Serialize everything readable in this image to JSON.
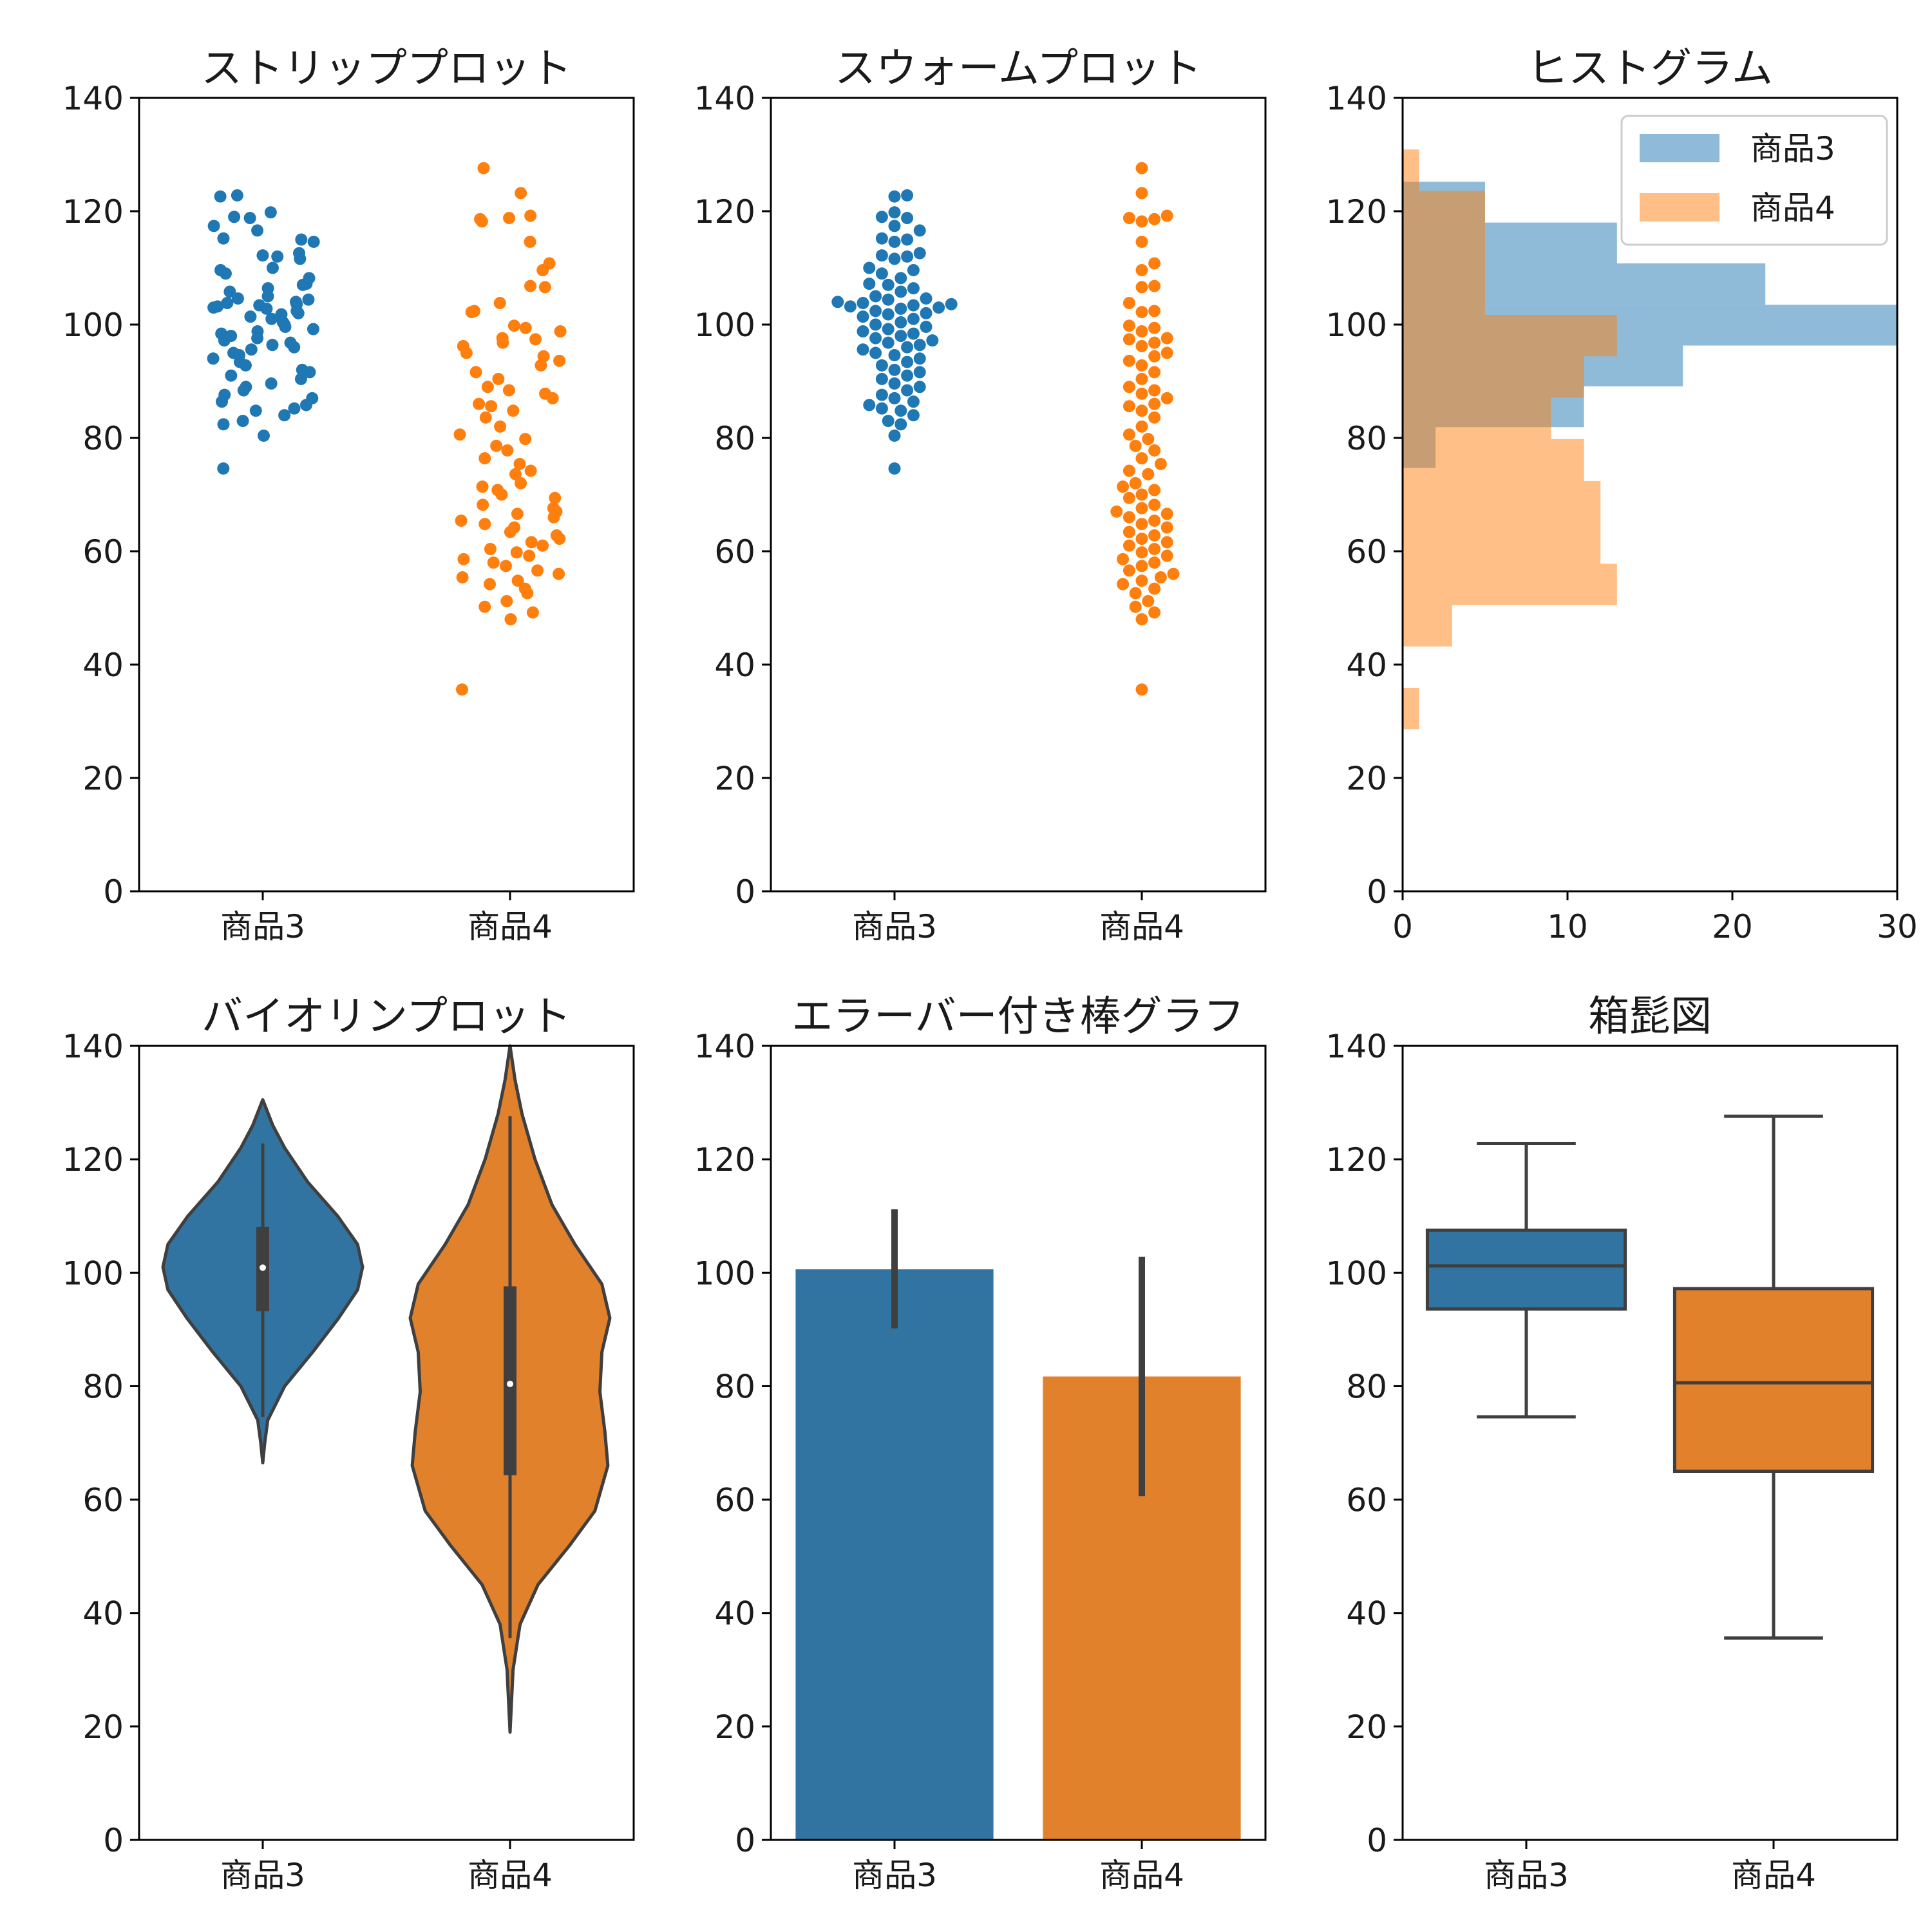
{
  "chart_data": [
    {
      "type": "scatter",
      "variant": "strip",
      "title": "ストリッププロット",
      "categories": [
        "商品3",
        "商品4"
      ],
      "ylim": [
        0,
        140
      ],
      "yticks": [
        0,
        20,
        40,
        60,
        80,
        100,
        120,
        140
      ],
      "colors": [
        "#1f77b4",
        "#ff7f0e"
      ],
      "series": [
        {
          "values": [
            122.8,
            122.6,
            119.8,
            119.0,
            118.8,
            117.4,
            116.6,
            115.2,
            115.0,
            114.6,
            112.6,
            112.2,
            112.0,
            111.6,
            110.0,
            109.6,
            109.0,
            108.2,
            107.2,
            107.0,
            106.4,
            105.8,
            105.0,
            104.6,
            104.4,
            104.0,
            103.8,
            103.6,
            103.4,
            103.2,
            103.0,
            102.8,
            102.4,
            102.0,
            101.8,
            101.4,
            101.0,
            100.4,
            100.0,
            99.6,
            99.2,
            98.8,
            98.4,
            98.0,
            97.6,
            97.2,
            96.8,
            96.4,
            96.0,
            95.6,
            95.0,
            94.6,
            94.0,
            93.4,
            92.8,
            92.0,
            91.6,
            91.0,
            90.4,
            89.6,
            89.0,
            88.4,
            87.6,
            87.0,
            86.4,
            85.8,
            85.2,
            84.8,
            84.0,
            83.0,
            82.4,
            80.4,
            74.6
          ]
        },
        {
          "values": [
            127.6,
            123.2,
            119.2,
            118.8,
            118.6,
            118.2,
            114.6,
            110.8,
            109.6,
            106.8,
            106.6,
            103.8,
            102.4,
            102.2,
            99.8,
            99.4,
            98.8,
            97.6,
            97.4,
            96.8,
            96.2,
            95.0,
            94.4,
            93.6,
            92.8,
            91.6,
            90.4,
            89.0,
            88.4,
            87.8,
            87.0,
            86.0,
            85.6,
            84.8,
            83.6,
            82.0,
            80.6,
            79.8,
            78.6,
            77.8,
            76.4,
            75.4,
            74.2,
            73.6,
            72.0,
            71.4,
            70.8,
            70.0,
            69.4,
            68.2,
            67.6,
            67.0,
            66.6,
            66.0,
            65.4,
            64.8,
            64.2,
            63.4,
            62.8,
            62.2,
            61.6,
            61.0,
            60.4,
            59.8,
            59.2,
            58.6,
            58.0,
            57.4,
            56.6,
            56.0,
            55.4,
            54.8,
            54.2,
            53.4,
            52.6,
            51.2,
            50.2,
            49.2,
            48.0,
            35.6
          ]
        }
      ]
    },
    {
      "type": "scatter",
      "variant": "swarm",
      "title": "スウォームプロット",
      "categories": [
        "商品3",
        "商品4"
      ],
      "ylim": [
        0,
        140
      ],
      "yticks": [
        0,
        20,
        40,
        60,
        80,
        100,
        120,
        140
      ],
      "colors": [
        "#1f77b4",
        "#ff7f0e"
      ],
      "same_values_as": "ストリッププロット"
    },
    {
      "type": "bar",
      "variant": "horizontal-histogram",
      "title": "ヒストグラム",
      "ylim": [
        0,
        140
      ],
      "xlim": [
        0,
        30
      ],
      "yticks": [
        0,
        20,
        40,
        60,
        80,
        100,
        120,
        140
      ],
      "xticks": [
        0,
        10,
        20,
        30
      ],
      "legend_position": "top-right",
      "series": [
        {
          "name": "商品3",
          "color": "#1f77b4",
          "bins": [
            {
              "range": [
                74.7,
                81.9
              ],
              "count": 2
            },
            {
              "range": [
                81.9,
                89.1
              ],
              "count": 11
            },
            {
              "range": [
                89.1,
                96.3
              ],
              "count": 17
            },
            {
              "range": [
                96.3,
                103.5
              ],
              "count": 30
            },
            {
              "range": [
                103.5,
                110.8
              ],
              "count": 22
            },
            {
              "range": [
                110.8,
                118.0
              ],
              "count": 13
            },
            {
              "range": [
                118.0,
                125.2
              ],
              "count": 5
            }
          ]
        },
        {
          "name": "商品4",
          "color": "#ff7f0e",
          "bins": [
            {
              "range": [
                28.6,
                35.9
              ],
              "count": 1
            },
            {
              "range": [
                35.9,
                43.2
              ],
              "count": 0
            },
            {
              "range": [
                43.2,
                50.5
              ],
              "count": 3
            },
            {
              "range": [
                50.5,
                57.8
              ],
              "count": 13
            },
            {
              "range": [
                57.8,
                65.1
              ],
              "count": 12
            },
            {
              "range": [
                65.1,
                72.4
              ],
              "count": 12
            },
            {
              "range": [
                72.4,
                79.8
              ],
              "count": 11
            },
            {
              "range": [
                79.8,
                87.1
              ],
              "count": 9
            },
            {
              "range": [
                87.1,
                94.4
              ],
              "count": 11
            },
            {
              "range": [
                94.4,
                101.7
              ],
              "count": 13
            },
            {
              "range": [
                101.7,
                109.0
              ],
              "count": 5
            },
            {
              "range": [
                109.0,
                116.3
              ],
              "count": 5
            },
            {
              "range": [
                116.3,
                123.6
              ],
              "count": 5
            },
            {
              "range": [
                123.6,
                130.9
              ],
              "count": 1
            }
          ]
        }
      ]
    },
    {
      "type": "area",
      "variant": "violin",
      "title": "バイオリンプロット",
      "categories": [
        "商品3",
        "商品4"
      ],
      "ylim": [
        0,
        140
      ],
      "yticks": [
        0,
        20,
        40,
        60,
        80,
        100,
        120,
        140
      ],
      "colors": [
        "#3274a1",
        "#e1812c"
      ],
      "violins": [
        {
          "extent": [
            66.5,
            130.5
          ],
          "profile": [
            [
              66.5,
              0.0
            ],
            [
              70,
              0.02
            ],
            [
              74,
              0.05
            ],
            [
              80,
              0.22
            ],
            [
              86,
              0.5
            ],
            [
              92,
              0.76
            ],
            [
              97,
              0.95
            ],
            [
              101,
              1.0
            ],
            [
              105,
              0.95
            ],
            [
              110,
              0.75
            ],
            [
              116,
              0.45
            ],
            [
              122,
              0.22
            ],
            [
              126,
              0.1
            ],
            [
              130.5,
              0.0
            ]
          ],
          "quartiles": [
            93.2,
            100.9,
            108.1
          ],
          "whiskers": [
            74.6,
            122.8
          ]
        },
        {
          "extent": [
            19.0,
            140.0
          ],
          "profile": [
            [
              19.0,
              0.0
            ],
            [
              30,
              0.03
            ],
            [
              38,
              0.1
            ],
            [
              45,
              0.28
            ],
            [
              52,
              0.6
            ],
            [
              58,
              0.85
            ],
            [
              66,
              0.98
            ],
            [
              72,
              0.95
            ],
            [
              79,
              0.9
            ],
            [
              86,
              0.92
            ],
            [
              92,
              1.0
            ],
            [
              98,
              0.92
            ],
            [
              105,
              0.65
            ],
            [
              112,
              0.42
            ],
            [
              120,
              0.25
            ],
            [
              128,
              0.12
            ],
            [
              134,
              0.05
            ],
            [
              140,
              0.0
            ]
          ],
          "quartiles": [
            64.3,
            80.4,
            97.6
          ],
          "whiskers": [
            35.6,
            127.6
          ]
        }
      ]
    },
    {
      "type": "bar",
      "variant": "errorbar",
      "title": "エラーバー付き棒グラフ",
      "categories": [
        "商品3",
        "商品4"
      ],
      "values": [
        100.6,
        81.7
      ],
      "error_low": [
        90.2,
        60.6
      ],
      "error_high": [
        111.2,
        102.8
      ],
      "ylim": [
        0,
        140
      ],
      "yticks": [
        0,
        20,
        40,
        60,
        80,
        100,
        120,
        140
      ],
      "colors": [
        "#3274a1",
        "#e1812c"
      ]
    },
    {
      "type": "box",
      "title": "箱髭図",
      "categories": [
        "商品3",
        "商品4"
      ],
      "ylim": [
        0,
        140
      ],
      "yticks": [
        0,
        20,
        40,
        60,
        80,
        100,
        120,
        140
      ],
      "colors": [
        "#3274a1",
        "#e1812c"
      ],
      "boxes": [
        {
          "whisker_low": 74.6,
          "q1": 93.6,
          "median": 101.2,
          "q3": 107.5,
          "whisker_high": 122.8
        },
        {
          "whisker_low": 35.6,
          "q1": 65.0,
          "median": 80.6,
          "q3": 97.2,
          "whisker_high": 127.6
        }
      ]
    }
  ]
}
